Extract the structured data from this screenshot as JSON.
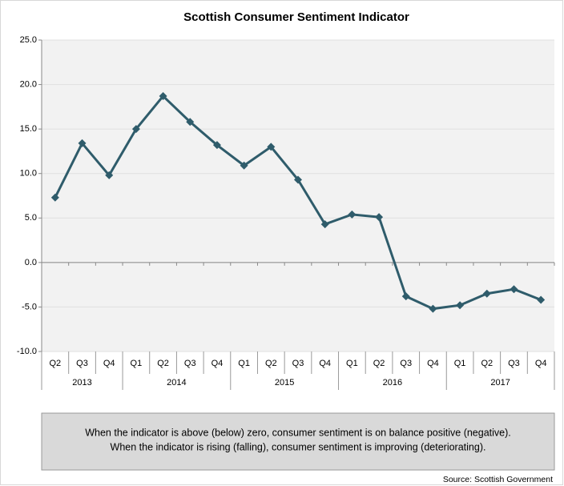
{
  "chart_data": {
    "type": "line",
    "title": "Scottish Consumer Sentiment Indicator",
    "groups": [
      {
        "label": "2013",
        "categories": [
          "Q2",
          "Q3",
          "Q4"
        ]
      },
      {
        "label": "2014",
        "categories": [
          "Q1",
          "Q2",
          "Q3",
          "Q4"
        ]
      },
      {
        "label": "2015",
        "categories": [
          "Q1",
          "Q2",
          "Q3",
          "Q4"
        ]
      },
      {
        "label": "2016",
        "categories": [
          "Q1",
          "Q2",
          "Q3",
          "Q4"
        ]
      },
      {
        "label": "2017",
        "categories": [
          "Q1",
          "Q2",
          "Q3",
          "Q4"
        ]
      }
    ],
    "series": [
      {
        "color": "#2f5c6b",
        "values": [
          7.3,
          13.4,
          9.8,
          15.0,
          18.7,
          15.8,
          13.2,
          10.9,
          13.0,
          9.3,
          4.3,
          5.4,
          5.1,
          -3.8,
          -5.2,
          -4.8,
          -3.5,
          -3.0,
          -4.2
        ]
      }
    ],
    "ylim": [
      -10,
      25
    ],
    "yticks": [
      {
        "value": -10,
        "label": "-10.0"
      },
      {
        "value": -5,
        "label": "-5.0"
      },
      {
        "value": 0,
        "label": "0.0"
      },
      {
        "value": 5,
        "label": "5.0"
      },
      {
        "value": 10,
        "label": "10.0"
      },
      {
        "value": 15,
        "label": "15.0"
      },
      {
        "value": 20,
        "label": "20.0"
      },
      {
        "value": 25,
        "label": "25.0"
      }
    ],
    "grid": true,
    "note": [
      "When the indicator is above (below) zero, consumer sentiment is on balance positive (negative).",
      "When the indicator is rising (falling), consumer sentiment is improving (deteriorating)."
    ],
    "source": "Source: Scottish Government"
  }
}
